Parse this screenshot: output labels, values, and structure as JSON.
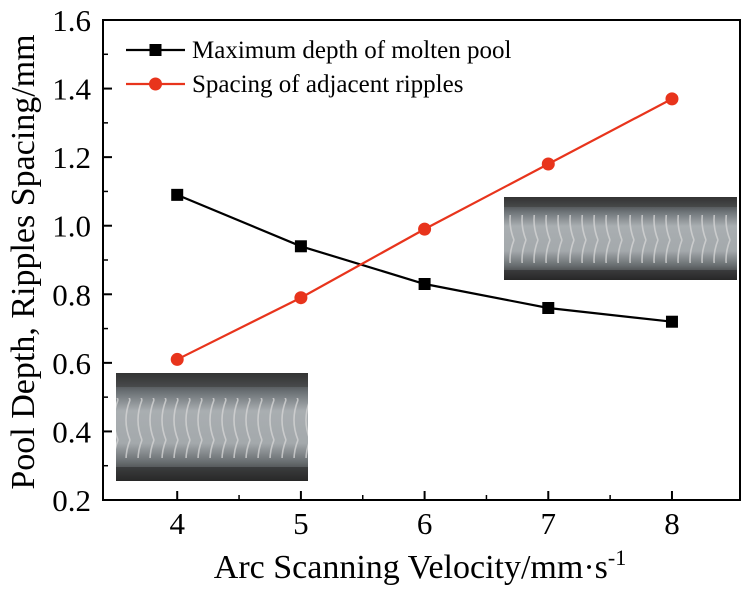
{
  "chart_data": {
    "type": "line",
    "xlabel": "Arc Scanning Velocity/mm·s",
    "xlabel_superscript": "-1",
    "ylabel": "Pool Depth, Ripples Spacing/mm",
    "xlim": [
      3.4,
      8.55
    ],
    "ylim": [
      0.2,
      1.6
    ],
    "x_ticks": [
      "4",
      "5",
      "6",
      "7",
      "8"
    ],
    "y_ticks": [
      "0.2",
      "0.4",
      "0.6",
      "0.8",
      "1.0",
      "1.2",
      "1.4",
      "1.6"
    ],
    "x": [
      4,
      5,
      6,
      7,
      8
    ],
    "grid": false,
    "legend_position": "top-left",
    "series": [
      {
        "name": "Maximum depth of molten pool",
        "values": [
          1.09,
          0.94,
          0.83,
          0.76,
          0.72
        ],
        "color": "#000000",
        "marker": "square"
      },
      {
        "name": "Spacing of adjacent ripples",
        "values": [
          0.61,
          0.79,
          0.99,
          1.18,
          1.37
        ],
        "color": "#e8341c",
        "marker": "circle"
      }
    ],
    "insets": [
      {
        "name": "ripple-photo-left",
        "description_icon": "weld-bead-photo"
      },
      {
        "name": "ripple-photo-right",
        "description_icon": "weld-bead-photo"
      }
    ]
  }
}
